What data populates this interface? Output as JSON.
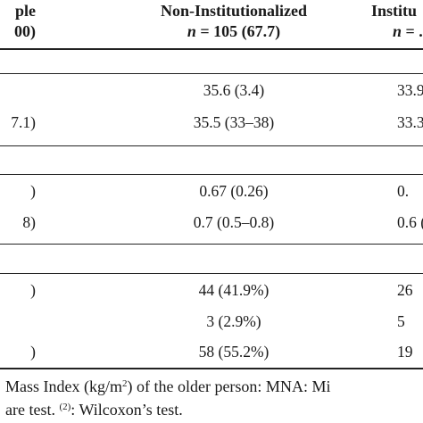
{
  "header": {
    "col1_title": "ple",
    "col1_sub": "00)",
    "col2_title": "Non-Institutionalized",
    "col2_sub_var": "n",
    "col2_sub_rest": " = 105 (67.7)",
    "col3_title": "Institu",
    "col3_sub_var": "n",
    "col3_sub_rest": " = ."
  },
  "rows": [
    {
      "c1": "",
      "c2": "35.6 (3.4)",
      "c3": "33.9"
    },
    {
      "c1": "7.1)",
      "c2": "35.5 (33–38)",
      "c3": "33.3"
    },
    {
      "c1": ")",
      "c2": "0.67 (0.26)",
      "c3": "0."
    },
    {
      "c1": "8)",
      "c2": "0.7 (0.5–0.8)",
      "c3": "0.6 ("
    },
    {
      "c1": ")",
      "c2": "44 (41.9%)",
      "c3": "26"
    },
    {
      "c1": "",
      "c2": "3 (2.9%)",
      "c3": "5"
    },
    {
      "c1": ")",
      "c2": "58 (55.2%)",
      "c3": "19"
    }
  ],
  "footnote": {
    "line1_a": "Mass Index (kg/m",
    "line1_sup": "2",
    "line1_b": ") of the older person: MNA: Mi",
    "line2_a": "are test. ",
    "line2_sup": "(2)",
    "line2_b": ": Wilcoxon’s test."
  }
}
